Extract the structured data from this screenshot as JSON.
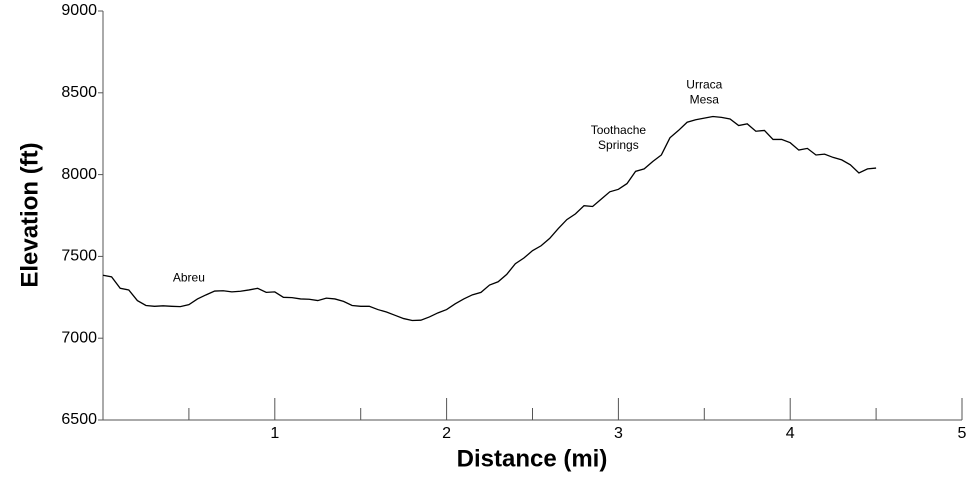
{
  "chart_data": {
    "type": "line",
    "xlabel": "Distance (mi)",
    "ylabel": "Elevation (ft)",
    "xlim": [
      0,
      5
    ],
    "ylim": [
      6500,
      9000
    ],
    "xticks": [
      1,
      2,
      3,
      4,
      5
    ],
    "xminorticks": [
      0.5,
      1.5,
      2.5,
      3.5,
      4.5
    ],
    "yticks": [
      6500,
      7000,
      7500,
      8000,
      8500,
      9000
    ],
    "color": "#000000",
    "x": [
      0,
      0.05,
      0.1,
      0.15,
      0.2,
      0.25,
      0.3,
      0.35,
      0.4,
      0.45,
      0.5,
      0.55,
      0.6,
      0.65,
      0.7,
      0.75,
      0.8,
      0.85,
      0.9,
      0.95,
      1.0,
      1.05,
      1.1,
      1.15,
      1.2,
      1.25,
      1.3,
      1.35,
      1.4,
      1.45,
      1.5,
      1.55,
      1.6,
      1.65,
      1.7,
      1.75,
      1.8,
      1.85,
      1.9,
      1.95,
      2.0,
      2.05,
      2.1,
      2.15,
      2.2,
      2.25,
      2.3,
      2.35,
      2.4,
      2.45,
      2.5,
      2.55,
      2.6,
      2.65,
      2.7,
      2.75,
      2.8,
      2.85,
      2.9,
      2.95,
      3.0,
      3.05,
      3.1,
      3.15,
      3.2,
      3.25,
      3.3,
      3.35,
      3.4,
      3.45,
      3.5,
      3.55,
      3.6,
      3.65,
      3.7,
      3.75,
      3.8,
      3.85,
      3.9,
      3.95,
      4.0,
      4.05,
      4.1,
      4.15,
      4.2,
      4.25,
      4.3,
      4.35,
      4.4,
      4.45,
      4.5
    ],
    "values": [
      7385,
      7375,
      7305,
      7295,
      7230,
      7200,
      7195,
      7198,
      7195,
      7193,
      7205,
      7240,
      7265,
      7288,
      7290,
      7283,
      7287,
      7295,
      7305,
      7280,
      7283,
      7250,
      7248,
      7240,
      7238,
      7230,
      7245,
      7240,
      7225,
      7200,
      7195,
      7195,
      7175,
      7160,
      7140,
      7120,
      7108,
      7110,
      7130,
      7155,
      7175,
      7210,
      7240,
      7265,
      7280,
      7325,
      7345,
      7390,
      7455,
      7490,
      7535,
      7565,
      7610,
      7670,
      7725,
      7760,
      7810,
      7805,
      7850,
      7895,
      7910,
      7945,
      8020,
      8035,
      8080,
      8120,
      8225,
      8270,
      8320,
      8335,
      8345,
      8355,
      8350,
      8340,
      8300,
      8310,
      8265,
      8270,
      8215,
      8215,
      8195,
      8150,
      8160,
      8120,
      8125,
      8105,
      8090,
      8060,
      8010,
      8035,
      8040
    ],
    "annotations": [
      {
        "text": [
          "Abreu"
        ],
        "x": 0.5,
        "y": 7367
      },
      {
        "text": [
          "Toothache",
          "Springs"
        ],
        "x": 3.0,
        "y": 8222
      },
      {
        "text": [
          "Urraca",
          "Mesa"
        ],
        "x": 3.5,
        "y": 8500
      }
    ]
  }
}
